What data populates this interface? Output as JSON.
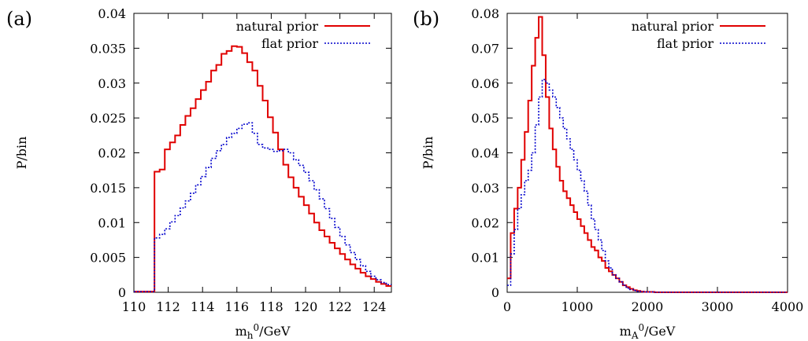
{
  "chart_data": [
    {
      "type": "line",
      "panel_label": "(a)",
      "xlabel": "m",
      "xlabel_sub": "h",
      "xlabel_sup": "0",
      "xlabel_tail": "/GeV",
      "ylabel": "P/bin",
      "xlim": [
        110,
        125
      ],
      "ylim": [
        0,
        0.04
      ],
      "xticks": [
        110,
        112,
        114,
        116,
        118,
        120,
        122,
        124
      ],
      "xtick_labels": [
        "110",
        "112",
        "114",
        "116",
        "118",
        "120",
        "122",
        "124"
      ],
      "yticks": [
        0,
        0.005,
        0.01,
        0.015,
        0.02,
        0.025,
        0.03,
        0.035,
        0.04
      ],
      "ytick_labels": [
        "0",
        "0.005",
        "0.01",
        "0.015",
        "0.02",
        "0.025",
        "0.03",
        "0.035",
        "0.04"
      ],
      "grid": false,
      "legend_position": "top-right",
      "step": "histogram",
      "series": [
        {
          "name": "natural prior",
          "color": "#e00000",
          "dash": "solid",
          "x": [
            110,
            110.3,
            110.6,
            110.9,
            111.2,
            111.5,
            111.8,
            112.1,
            112.4,
            112.7,
            113.0,
            113.3,
            113.6,
            113.9,
            114.2,
            114.5,
            114.8,
            115.1,
            115.4,
            115.7,
            116.0,
            116.3,
            116.6,
            116.9,
            117.2,
            117.5,
            117.8,
            118.1,
            118.4,
            118.7,
            119.0,
            119.3,
            119.6,
            119.9,
            120.2,
            120.5,
            120.8,
            121.1,
            121.4,
            121.7,
            122.0,
            122.3,
            122.6,
            122.9,
            123.2,
            123.5,
            123.8,
            124.1,
            124.4,
            124.7,
            125.0
          ],
          "y": [
            0.0001,
            0.0001,
            0.0001,
            0.0001,
            0.0173,
            0.0176,
            0.0205,
            0.0215,
            0.0225,
            0.024,
            0.0253,
            0.0264,
            0.0277,
            0.029,
            0.0302,
            0.0318,
            0.0326,
            0.0342,
            0.0346,
            0.0353,
            0.0352,
            0.0343,
            0.033,
            0.0318,
            0.0296,
            0.0275,
            0.0251,
            0.0229,
            0.0205,
            0.0183,
            0.0165,
            0.015,
            0.0137,
            0.0125,
            0.0113,
            0.01,
            0.0089,
            0.008,
            0.0071,
            0.0063,
            0.0055,
            0.0047,
            0.004,
            0.0034,
            0.0028,
            0.0023,
            0.0019,
            0.0015,
            0.0012,
            0.0009,
            0.0007
          ]
        },
        {
          "name": "flat prior",
          "color": "#0000cc",
          "dash": "dotted",
          "x": [
            110,
            110.3,
            110.6,
            110.9,
            111.2,
            111.5,
            111.8,
            112.1,
            112.4,
            112.7,
            113.0,
            113.3,
            113.6,
            113.9,
            114.2,
            114.5,
            114.8,
            115.1,
            115.4,
            115.7,
            116.0,
            116.3,
            116.6,
            116.9,
            117.2,
            117.5,
            117.8,
            118.1,
            118.4,
            118.7,
            119.0,
            119.3,
            119.6,
            119.9,
            120.2,
            120.5,
            120.8,
            121.1,
            121.4,
            121.7,
            122.0,
            122.3,
            122.6,
            122.9,
            123.2,
            123.5,
            123.8,
            124.1,
            124.4,
            124.7,
            125.0
          ],
          "y": [
            0.0001,
            0.0001,
            0.0001,
            0.0001,
            0.0078,
            0.0083,
            0.0091,
            0.0101,
            0.011,
            0.0121,
            0.0131,
            0.0142,
            0.0154,
            0.0166,
            0.0179,
            0.0192,
            0.0203,
            0.0212,
            0.0222,
            0.0228,
            0.0235,
            0.0241,
            0.0243,
            0.0228,
            0.0212,
            0.0207,
            0.0205,
            0.0202,
            0.0203,
            0.0205,
            0.02,
            0.019,
            0.0182,
            0.0172,
            0.016,
            0.0147,
            0.0134,
            0.012,
            0.0106,
            0.0093,
            0.008,
            0.0068,
            0.0057,
            0.0047,
            0.0038,
            0.003,
            0.0023,
            0.0018,
            0.0014,
            0.0011,
            0.0009
          ]
        }
      ]
    },
    {
      "type": "line",
      "panel_label": "(b)",
      "xlabel": "m",
      "xlabel_sub": "A",
      "xlabel_sup": "0",
      "xlabel_tail": "/GeV",
      "ylabel": "P/bin",
      "xlim": [
        0,
        4000
      ],
      "ylim": [
        0,
        0.08
      ],
      "xticks": [
        0,
        1000,
        2000,
        3000,
        4000
      ],
      "xtick_labels": [
        "0",
        "1000",
        "2000",
        "3000",
        "4000"
      ],
      "yticks": [
        0,
        0.01,
        0.02,
        0.03,
        0.04,
        0.05,
        0.06,
        0.07,
        0.08
      ],
      "ytick_labels": [
        "0",
        "0.01",
        "0.02",
        "0.03",
        "0.04",
        "0.05",
        "0.06",
        "0.07",
        "0.08"
      ],
      "grid": false,
      "legend_position": "top-right",
      "step": "histogram",
      "series": [
        {
          "name": "natural prior",
          "color": "#e00000",
          "dash": "solid",
          "x": [
            0,
            50,
            100,
            150,
            200,
            250,
            300,
            350,
            400,
            450,
            500,
            550,
            600,
            650,
            700,
            750,
            800,
            850,
            900,
            950,
            1000,
            1050,
            1100,
            1150,
            1200,
            1250,
            1300,
            1350,
            1400,
            1450,
            1500,
            1550,
            1600,
            1650,
            1700,
            1750,
            1800,
            1850,
            1900,
            1950,
            2000,
            2100,
            2200,
            4000
          ],
          "y": [
            0.004,
            0.017,
            0.024,
            0.03,
            0.038,
            0.046,
            0.055,
            0.065,
            0.073,
            0.079,
            0.068,
            0.056,
            0.047,
            0.041,
            0.036,
            0.032,
            0.029,
            0.027,
            0.025,
            0.023,
            0.021,
            0.019,
            0.017,
            0.015,
            0.013,
            0.012,
            0.01,
            0.009,
            0.007,
            0.006,
            0.005,
            0.004,
            0.003,
            0.002,
            0.0015,
            0.001,
            0.0006,
            0.0004,
            0.0002,
            0.0001,
            0.0001,
            0.0,
            0.0,
            0.0
          ]
        },
        {
          "name": "flat prior",
          "color": "#0000cc",
          "dash": "dotted",
          "x": [
            0,
            50,
            100,
            150,
            200,
            250,
            300,
            350,
            400,
            450,
            500,
            550,
            600,
            650,
            700,
            750,
            800,
            850,
            900,
            950,
            1000,
            1050,
            1100,
            1150,
            1200,
            1250,
            1300,
            1350,
            1400,
            1450,
            1500,
            1550,
            1600,
            1650,
            1700,
            1750,
            1800,
            1850,
            1900,
            1950,
            2000,
            2100,
            2200,
            4000
          ],
          "y": [
            0.002,
            0.011,
            0.018,
            0.024,
            0.028,
            0.032,
            0.035,
            0.04,
            0.048,
            0.056,
            0.061,
            0.06,
            0.058,
            0.056,
            0.053,
            0.05,
            0.047,
            0.044,
            0.041,
            0.038,
            0.035,
            0.032,
            0.029,
            0.025,
            0.021,
            0.018,
            0.015,
            0.012,
            0.009,
            0.007,
            0.005,
            0.004,
            0.003,
            0.002,
            0.0012,
            0.0008,
            0.0005,
            0.0003,
            0.0002,
            0.0001,
            0.0001,
            0.0,
            0.0,
            0.0
          ]
        }
      ]
    }
  ]
}
